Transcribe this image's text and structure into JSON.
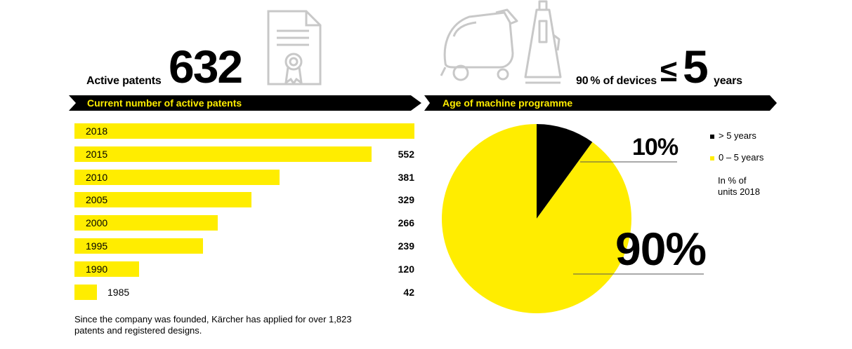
{
  "header_left": {
    "label": "Active patents",
    "value": "632"
  },
  "header_right": {
    "prefix": "90 % of devices",
    "symbol": "≤",
    "number": "5",
    "suffix": "years"
  },
  "banners": {
    "left": "Current number of active patents",
    "right": "Age of machine programme"
  },
  "footnote": "Since the company was founded, Kärcher has applied for over 1,823 patents and registered designs.",
  "legend": {
    "items": [
      {
        "label": "> 5 years",
        "color": "#000000"
      },
      {
        "label": "0 – 5 years",
        "color": "#ffed00"
      }
    ],
    "note_line1": "In % of",
    "note_line2": "units 2018"
  },
  "pie_labels": {
    "small": "10%",
    "large": "90%"
  },
  "colors": {
    "accent": "#ffed00",
    "dark": "#000000",
    "icon_gray": "#c8c8c8"
  },
  "icons": [
    "certificate-icon",
    "floor-scrubber-icon",
    "vacuum-cleaner-icon"
  ],
  "chart_data": [
    {
      "type": "bar",
      "orientation": "horizontal",
      "title": "Current number of active patents",
      "categories": [
        "2018",
        "2015",
        "2010",
        "2005",
        "2000",
        "1995",
        "1990",
        "1985"
      ],
      "values": [
        632,
        552,
        381,
        329,
        266,
        239,
        120,
        42
      ],
      "value_labels": [
        "",
        "552",
        "381",
        "329",
        "266",
        "239",
        "120",
        "42"
      ],
      "xlim": [
        0,
        632
      ],
      "grid": false
    },
    {
      "type": "pie",
      "title": "Age of machine programme",
      "series": [
        {
          "name": "> 5 years",
          "value": 10
        },
        {
          "name": "0 – 5 years",
          "value": 90
        }
      ],
      "unit": "In % of units 2018",
      "legend_position": "right"
    }
  ]
}
